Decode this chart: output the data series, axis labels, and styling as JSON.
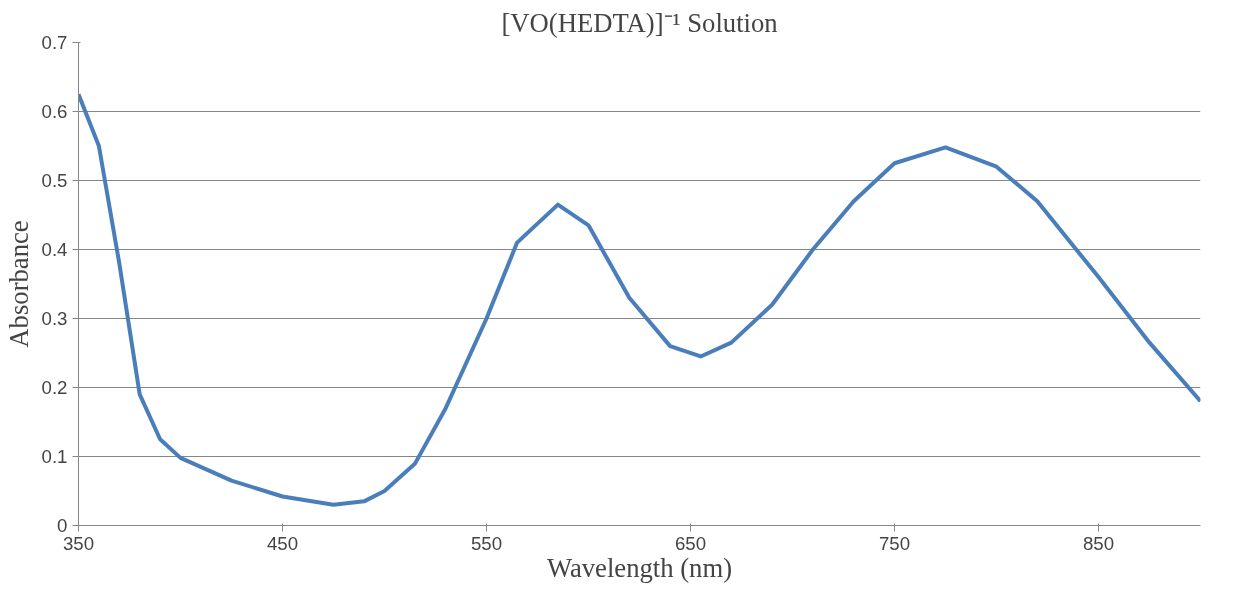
{
  "chart_data": {
    "type": "line",
    "title": "[VO(HEDTA)]⁻¹ Solution",
    "xlabel": "Wavelength (nm)",
    "ylabel": "Absorbance",
    "x": [
      350,
      360,
      370,
      380,
      390,
      400,
      425,
      450,
      475,
      490,
      500,
      515,
      530,
      550,
      565,
      585,
      600,
      620,
      640,
      655,
      670,
      690,
      710,
      730,
      750,
      775,
      800,
      820,
      850,
      875,
      900
    ],
    "series": [
      {
        "color": "#4a7ebb",
        "values": [
          0.625,
          0.55,
          0.38,
          0.19,
          0.125,
          0.098,
          0.065,
          0.042,
          0.03,
          0.035,
          0.05,
          0.09,
          0.17,
          0.3,
          0.41,
          0.465,
          0.435,
          0.33,
          0.26,
          0.245,
          0.265,
          0.32,
          0.4,
          0.47,
          0.525,
          0.548,
          0.52,
          0.47,
          0.36,
          0.265,
          0.18
        ]
      }
    ],
    "xlim": [
      350,
      900
    ],
    "xticks": [
      350,
      450,
      550,
      650,
      750,
      850
    ],
    "ylim": [
      0,
      0.7
    ],
    "yticks": [
      0,
      0.1,
      0.2,
      0.3,
      0.4,
      0.5,
      0.6,
      0.7
    ],
    "grid": "y",
    "marker": "none",
    "line_style": "solid"
  }
}
